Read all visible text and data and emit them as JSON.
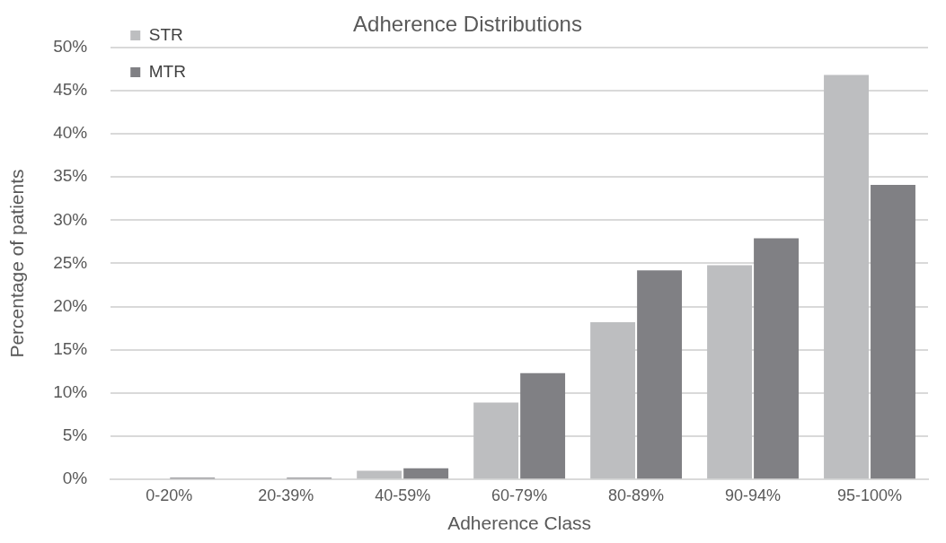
{
  "chart_data": {
    "type": "bar",
    "title": "Adherence Distributions",
    "xlabel": "Adherence Class",
    "ylabel": "Percentage of patients",
    "categories": [
      "0-20%",
      "20-39%",
      "40-59%",
      "60-79%",
      "80-89%",
      "90-94%",
      "95-100%"
    ],
    "series": [
      {
        "name": "STR",
        "color": "#bdbec0",
        "values": [
          0,
          0,
          1.0,
          8.9,
          18.2,
          24.8,
          46.8
        ]
      },
      {
        "name": "MTR",
        "color": "#808084",
        "values": [
          0.2,
          0.2,
          1.3,
          12.3,
          24.2,
          27.9,
          34.1
        ]
      }
    ],
    "ylim": [
      0,
      50
    ],
    "yticks": [
      {
        "value": 0,
        "label": "0%"
      },
      {
        "value": 5,
        "label": "5%"
      },
      {
        "value": 10,
        "label": "10%"
      },
      {
        "value": 15,
        "label": "15%"
      },
      {
        "value": 20,
        "label": "20%"
      },
      {
        "value": 25,
        "label": "25%"
      },
      {
        "value": 30,
        "label": "30%"
      },
      {
        "value": 35,
        "label": "35%"
      },
      {
        "value": 40,
        "label": "40%"
      },
      {
        "value": 45,
        "label": "45%"
      },
      {
        "value": 50,
        "label": "50%"
      }
    ],
    "grid": "y",
    "legend": "top left"
  }
}
